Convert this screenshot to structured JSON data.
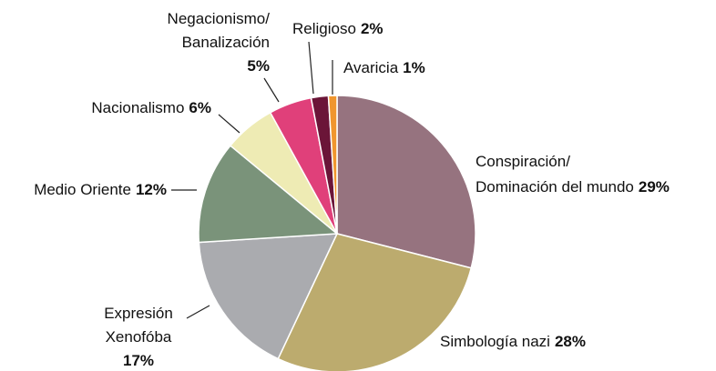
{
  "chart_data": {
    "type": "pie",
    "categories": [
      [
        "Conspiración/",
        "Dominación del mundo"
      ],
      [
        "Simbología nazi"
      ],
      [
        "Expresión",
        "Xenofóba"
      ],
      [
        "Medio Oriente"
      ],
      [
        "Nacionalismo"
      ],
      [
        "Negacionismo/",
        "Banalización"
      ],
      [
        "Religioso"
      ],
      [
        "Avaricia"
      ]
    ],
    "values": [
      29,
      28,
      17,
      12,
      6,
      5,
      2,
      1
    ],
    "value_labels": [
      "29%",
      "28%",
      "17%",
      "12%",
      "6%",
      "5%",
      "2%",
      "1%"
    ],
    "colors": [
      "#96737f",
      "#bcab6e",
      "#aaabaf",
      "#7a937a",
      "#eeebb4",
      "#e0407a",
      "#6b1538",
      "#f0962e"
    ]
  }
}
